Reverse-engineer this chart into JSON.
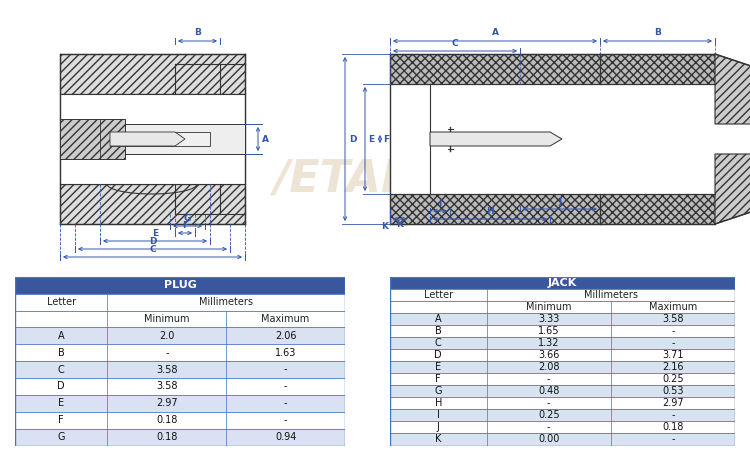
{
  "plug_table_rows": [
    [
      "A",
      "2.0",
      "2.06"
    ],
    [
      "B",
      "-",
      "1.63"
    ],
    [
      "C",
      "3.58",
      "-"
    ],
    [
      "D",
      "3.58",
      "-"
    ],
    [
      "E",
      "2.97",
      "-"
    ],
    [
      "F",
      "0.18",
      "-"
    ],
    [
      "G",
      "0.18",
      "0.94"
    ]
  ],
  "jack_table_rows": [
    [
      "A",
      "3.33",
      "3.58"
    ],
    [
      "B",
      "1.65",
      "-"
    ],
    [
      "C",
      "1.32",
      "-"
    ],
    [
      "D",
      "3.66",
      "3.71"
    ],
    [
      "E",
      "2.08",
      "2.16"
    ],
    [
      "F",
      "-",
      "0.25"
    ],
    [
      "G",
      "0.48",
      "0.53"
    ],
    [
      "H",
      "-",
      "2.97"
    ],
    [
      "I",
      "0.25",
      "-"
    ],
    [
      "J",
      "-",
      "0.18"
    ],
    [
      "K",
      "0.00",
      "-"
    ]
  ],
  "header_bg": "#3a569e",
  "header_fg": "#ffffff",
  "row_even_bg": "#d9e1f2",
  "row_odd_bg": "#ffffff",
  "border_color": "#4472c4",
  "dim_color": "#3355aa",
  "line_color": "#333333",
  "hatch_color": "#555555",
  "fig_bg": "#ffffff",
  "watermark_color": "#c8a878",
  "watermark_alpha": 0.3
}
